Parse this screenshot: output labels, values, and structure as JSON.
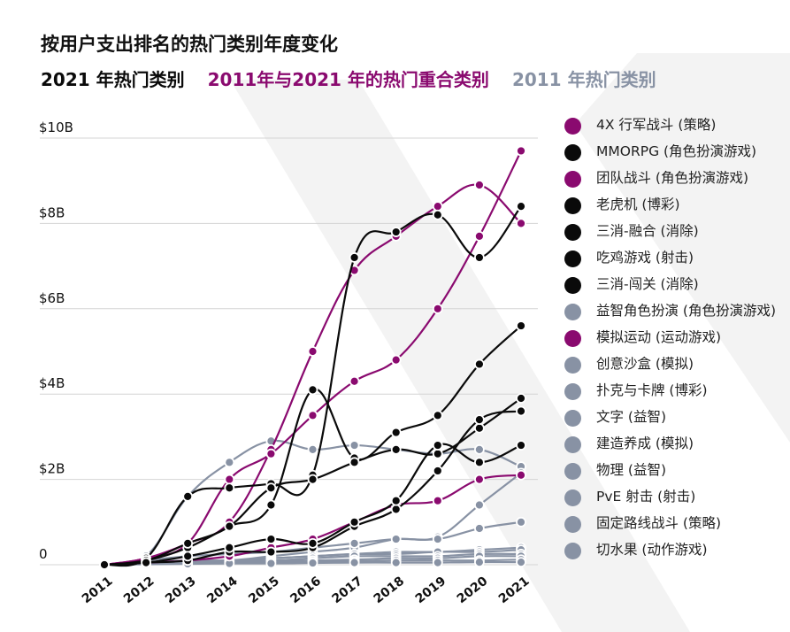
{
  "title": "按用户支出排名的热门类别年度变化",
  "subtitle": {
    "top2021": "2021 年热门类别",
    "overlap": "2011年与2021 年的热门重合类别",
    "top2011": "2011 年热门类别"
  },
  "colors": {
    "black": "#0a0a0a",
    "purple": "#8a0a6f",
    "gray": "#8892a4",
    "grid": "#d4d4d4",
    "watermark": "#f3f3f3"
  },
  "chart_data": {
    "type": "line",
    "title": "按用户支出排名的热门类别年度变化",
    "xlabel": "",
    "ylabel": "",
    "ylim": [
      0,
      10
    ],
    "y_unit": "$B",
    "x": [
      "2011",
      "2012",
      "2013",
      "2014",
      "2015",
      "2016",
      "2017",
      "2018",
      "2019",
      "2020",
      "2021"
    ],
    "y_ticks": [
      {
        "value": 10,
        "label": "$10B"
      },
      {
        "value": 8,
        "label": "$8B"
      },
      {
        "value": 6,
        "label": "$6B"
      },
      {
        "value": 4,
        "label": "$4B"
      },
      {
        "value": 2,
        "label": "$2B"
      },
      {
        "value": 0,
        "label": "0"
      }
    ],
    "series": [
      {
        "name": "4X 行军战斗 (策略)",
        "group": "overlap",
        "values": [
          0,
          0.15,
          0.5,
          1.0,
          2.7,
          5.0,
          6.9,
          7.7,
          8.4,
          8.9,
          8.0
        ]
      },
      {
        "name": "MMORPG (角色扮演游戏)",
        "group": "2021",
        "values": [
          0,
          0.15,
          1.6,
          1.8,
          1.9,
          2.1,
          7.2,
          7.8,
          8.2,
          7.2,
          8.4
        ]
      },
      {
        "name": "团队战斗 (角色扮演游戏)",
        "group": "overlap",
        "values": [
          0,
          0.15,
          0.5,
          2.0,
          2.6,
          3.5,
          4.3,
          4.8,
          6.0,
          7.7,
          9.7
        ]
      },
      {
        "name": "老虎机 (博彩)",
        "group": "2021",
        "values": [
          0,
          0.1,
          0.4,
          0.9,
          1.4,
          4.1,
          2.5,
          3.1,
          3.5,
          4.7,
          5.6
        ]
      },
      {
        "name": "三消-融合 (消除)",
        "group": "2021",
        "values": [
          0,
          0.1,
          0.5,
          0.9,
          1.8,
          2.0,
          2.4,
          2.7,
          2.6,
          3.2,
          3.9
        ]
      },
      {
        "name": "吃鸡游戏 (射击)",
        "group": "2021",
        "values": [
          0,
          0.05,
          0.1,
          0.3,
          0.3,
          0.4,
          0.9,
          1.3,
          2.2,
          3.4,
          3.6
        ]
      },
      {
        "name": "三消-闯关 (消除)",
        "group": "2021",
        "values": [
          0,
          0.05,
          0.2,
          0.4,
          0.6,
          0.5,
          1.0,
          1.5,
          2.8,
          2.4,
          2.8
        ]
      },
      {
        "name": "益智角色扮演 (角色扮演游戏)",
        "group": "2011",
        "values": [
          0,
          0.2,
          1.6,
          2.4,
          2.9,
          2.7,
          2.8,
          2.7,
          2.6,
          2.7,
          2.3
        ]
      },
      {
        "name": "模拟运动 (运动游戏)",
        "group": "overlap",
        "values": [
          0,
          0.05,
          0.1,
          0.2,
          0.4,
          0.6,
          1.0,
          1.4,
          1.5,
          2.0,
          2.1
        ]
      },
      {
        "name": "创意沙盒 (模拟)",
        "group": "2011",
        "values": [
          0,
          0.05,
          0.1,
          0.1,
          0.2,
          0.3,
          0.4,
          0.6,
          0.65,
          1.4,
          2.15
        ]
      },
      {
        "name": "扑克与卡牌 (博彩)",
        "group": "2011",
        "values": [
          0,
          0.1,
          0.2,
          0.25,
          0.3,
          0.4,
          0.5,
          0.6,
          0.6,
          0.85,
          1.0
        ]
      },
      {
        "name": "文字 (益智)",
        "group": "2011",
        "values": [
          0,
          0.05,
          0.1,
          0.1,
          0.15,
          0.2,
          0.25,
          0.3,
          0.3,
          0.35,
          0.4
        ]
      },
      {
        "name": "建造养成 (模拟)",
        "group": "2011",
        "values": [
          0,
          0.05,
          0.1,
          0.1,
          0.15,
          0.2,
          0.25,
          0.25,
          0.3,
          0.3,
          0.35
        ]
      },
      {
        "name": "物理 (益智)",
        "group": "2011",
        "values": [
          0,
          0.05,
          0.08,
          0.1,
          0.1,
          0.15,
          0.2,
          0.2,
          0.2,
          0.25,
          0.25
        ]
      },
      {
        "name": "PvE 射击 (射击)",
        "group": "2011",
        "values": [
          0,
          0.03,
          0.05,
          0.07,
          0.08,
          0.1,
          0.12,
          0.15,
          0.15,
          0.2,
          0.2
        ]
      },
      {
        "name": "固定路线战斗 (策略)",
        "group": "2011",
        "values": [
          0,
          0.02,
          0.03,
          0.04,
          0.05,
          0.06,
          0.08,
          0.1,
          0.1,
          0.1,
          0.12
        ]
      },
      {
        "name": "切水果 (动作游戏)",
        "group": "2011",
        "values": [
          0,
          0.01,
          0.02,
          0.03,
          0.03,
          0.04,
          0.05,
          0.05,
          0.05,
          0.06,
          0.06
        ]
      }
    ]
  }
}
